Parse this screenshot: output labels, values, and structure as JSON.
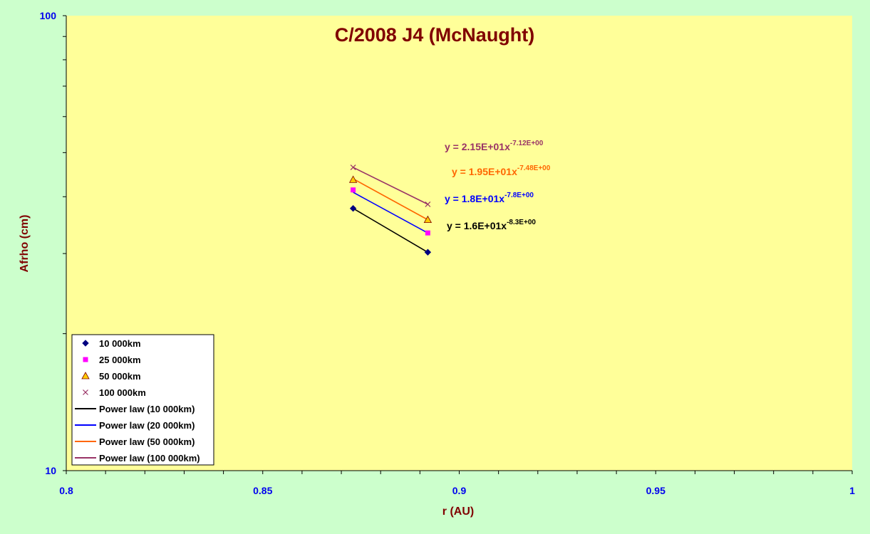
{
  "chart_data": {
    "type": "scatter",
    "title": "C/2008 J4 (McNaught)",
    "xlabel": "r (AU)",
    "ylabel": "Afrho (cm)",
    "xlim": [
      0.8,
      1.0
    ],
    "ylim": [
      10,
      100
    ],
    "yscale": "log",
    "x_ticks": [
      "0.8",
      "0.85",
      "0.9",
      "0.95",
      "1"
    ],
    "y_ticks": [
      "10",
      "100"
    ],
    "grid": false,
    "legend_position": "bottom-left",
    "colors": {
      "plot_area": "#ffff99",
      "background": "#ccffcc",
      "axis_tick_labels": "#0000ee",
      "titles": "#800000"
    },
    "series": [
      {
        "name": "10 000km",
        "kind": "marker",
        "marker": "diamond",
        "color": "#000080",
        "x": [
          0.873,
          0.892
        ],
        "y": [
          37.7,
          30.2
        ]
      },
      {
        "name": "25 000km",
        "kind": "marker",
        "marker": "square",
        "color": "#ff00ff",
        "x": [
          0.873,
          0.892
        ],
        "y": [
          41.4,
          33.3
        ]
      },
      {
        "name": "50 000km",
        "kind": "marker",
        "marker": "triangle",
        "color": "#ffcc00",
        "x": [
          0.873,
          0.892
        ],
        "y": [
          43.6,
          35.6
        ]
      },
      {
        "name": "100 000km",
        "kind": "marker",
        "marker": "x",
        "color": "#993366",
        "x": [
          0.873,
          0.892
        ],
        "y": [
          46.4,
          38.5
        ]
      },
      {
        "name": "Power law (10 000km)",
        "kind": "line",
        "color": "#000000",
        "x": [
          0.873,
          0.892
        ],
        "y": [
          37.7,
          30.2
        ]
      },
      {
        "name": "Power law (20 000km)",
        "kind": "line",
        "color": "#0000ff",
        "x": [
          0.873,
          0.892
        ],
        "y": [
          40.9,
          33.3
        ]
      },
      {
        "name": "Power law (50 000km)",
        "kind": "line",
        "color": "#ff6600",
        "x": [
          0.873,
          0.892
        ],
        "y": [
          43.8,
          35.6
        ]
      },
      {
        "name": "Power law (100 000km)",
        "kind": "line",
        "color": "#993366",
        "x": [
          0.873,
          0.892
        ],
        "y": [
          46.4,
          38.5
        ]
      }
    ],
    "annotations": [
      {
        "base": "y = 2.15E+01x",
        "exp": "-7.12E+00",
        "color": "#993366"
      },
      {
        "base": "y = 1.95E+01x",
        "exp": "-7.48E+00",
        "color": "#ff6600"
      },
      {
        "base": "y = 1.8E+01x",
        "exp": "-7.8E+00",
        "color": "#0000ff"
      },
      {
        "base": "y = 1.6E+01x",
        "exp": "-8.3E+00",
        "color": "#000000"
      }
    ]
  }
}
